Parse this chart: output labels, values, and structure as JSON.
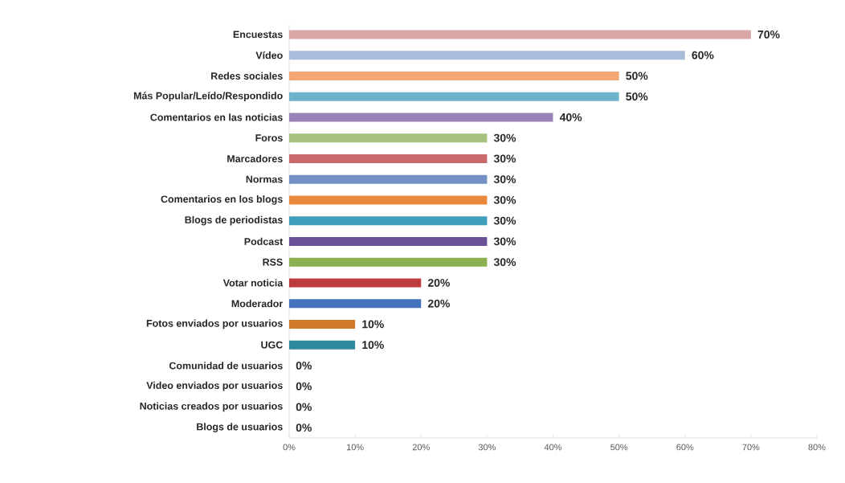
{
  "chart_data": {
    "type": "bar",
    "orientation": "horizontal",
    "categories": [
      "Encuestas",
      "Vídeo",
      "Redes sociales",
      "Más Popular/Leído/Respondido",
      "Comentarios en las noticias",
      "Foros",
      "Marcadores",
      "Normas",
      "Comentarios en los blogs",
      "Blogs de periodistas",
      "Podcast",
      "RSS",
      "Votar noticia",
      "Moderador",
      "Fotos enviados por usuarios",
      "UGC",
      "Comunidad de usuarios",
      "Video enviados por usuarios",
      "Noticias creados por usuarios",
      "Blogs de usuarios"
    ],
    "values": [
      70,
      60,
      50,
      50,
      40,
      30,
      30,
      30,
      30,
      30,
      30,
      30,
      20,
      20,
      10,
      10,
      0,
      0,
      0,
      0
    ],
    "colors": [
      "#d9a6a6",
      "#a9bcd9",
      "#f3a774",
      "#6db3cc",
      "#9a82b8",
      "#a7c27e",
      "#c9696c",
      "#7590c4",
      "#e8893e",
      "#3f9fbb",
      "#6b5196",
      "#8bb04f",
      "#bd3d3d",
      "#4574be",
      "#d07a2c",
      "#2e8a9c",
      "#8064a2",
      "#9bbb59",
      "#c0504d",
      "#4f81bd"
    ],
    "value_labels": [
      "70%",
      "60%",
      "50%",
      "50%",
      "40%",
      "30%",
      "30%",
      "30%",
      "30%",
      "30%",
      "30%",
      "30%",
      "20%",
      "20%",
      "10%",
      "10%",
      "0%",
      "0%",
      "0%",
      "0%"
    ],
    "xlim": [
      0,
      80
    ],
    "xticks": [
      {
        "value": 0,
        "label": "0%"
      },
      {
        "value": 10,
        "label": "10%"
      },
      {
        "value": 20,
        "label": "20%"
      },
      {
        "value": 30,
        "label": "30%"
      },
      {
        "value": 40,
        "label": "40%"
      },
      {
        "value": 50,
        "label": "50%"
      },
      {
        "value": 60,
        "label": "60%"
      },
      {
        "value": 70,
        "label": "70%"
      },
      {
        "value": 80,
        "label": "80%"
      }
    ]
  }
}
